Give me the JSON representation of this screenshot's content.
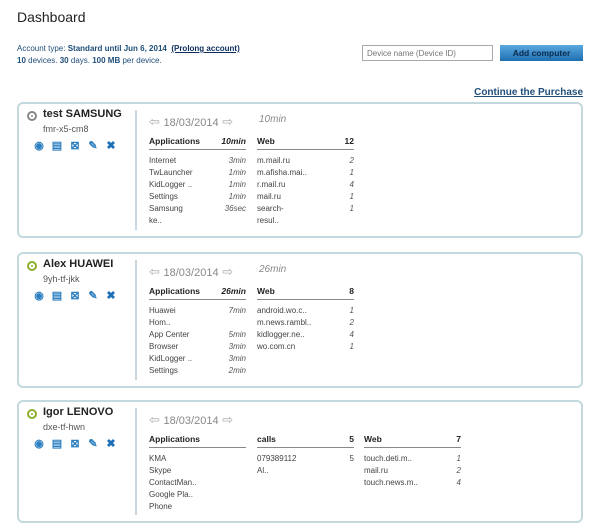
{
  "header": {
    "title": "Dashboard",
    "account_label": "Account type:",
    "account_type": "Standard until Jun 6, 2014",
    "prolong": "(Prolong account)",
    "devices": "10",
    "devices_label": "devices.",
    "days": "30",
    "days_label": "days.",
    "mb": "100 MB",
    "mb_label": "per device.",
    "device_input_placeholder": "Device name (Device ID)",
    "add_button": "Add computer",
    "continue": "Continue the Purchase"
  },
  "colors": {
    "accent": "#1f4e79",
    "button": "#3a8fd0",
    "card_border": "#c3d9de",
    "online": "#8cae2c",
    "offline": "#888888"
  },
  "devices": [
    {
      "name": "test SAMSUNG",
      "id": "fmr-x5-cm8",
      "online": false,
      "date": "18/03/2014",
      "total": "10min",
      "columns": [
        {
          "title": "Applications",
          "count": "10min",
          "rows": [
            [
              "Internet",
              "3min"
            ],
            [
              "TwLauncher",
              "1min"
            ],
            [
              "KidLogger ..",
              "1min"
            ],
            [
              "Settings",
              "1min"
            ],
            [
              "Samsung",
              "36sec"
            ],
            [
              "ke..",
              ""
            ]
          ]
        },
        {
          "title": "Web",
          "count": "12",
          "rows": [
            [
              "m.mail.ru",
              "2"
            ],
            [
              "m.afisha.mai..",
              "1"
            ],
            [
              "r.mail.ru",
              "4"
            ],
            [
              "mail.ru",
              "1"
            ],
            [
              "search-",
              "1"
            ],
            [
              "resul..",
              ""
            ]
          ]
        }
      ]
    },
    {
      "name": "Alex HUAWEI",
      "id": "9yh-tf-jkk",
      "online": true,
      "date": "18/03/2014",
      "total": "26min",
      "columns": [
        {
          "title": "Applications",
          "count": "26min",
          "rows": [
            [
              "Huawei",
              "7min"
            ],
            [
              "Hom..",
              ""
            ],
            [
              "App Center",
              "5min"
            ],
            [
              "Browser",
              "3min"
            ],
            [
              "KidLogger ..",
              "3min"
            ],
            [
              "Settings",
              "2min"
            ]
          ]
        },
        {
          "title": "Web",
          "count": "8",
          "rows": [
            [
              "android.wo.c..",
              "1"
            ],
            [
              "m.news.rambl..",
              "2"
            ],
            [
              "kidlogger.ne..",
              "4"
            ],
            [
              "wo.com.cn",
              "1"
            ]
          ]
        }
      ]
    },
    {
      "name": "Igor LENOVO",
      "id": "dxe-tf-hwn",
      "online": true,
      "date": "18/03/2014",
      "total": "",
      "columns": [
        {
          "title": "Applications",
          "count": "",
          "rows": [
            [
              "KMA",
              ""
            ],
            [
              "Skype",
              ""
            ],
            [
              "ContactMan..",
              ""
            ],
            [
              "Google Pla..",
              ""
            ],
            [
              "Phone",
              ""
            ]
          ]
        },
        {
          "title": "calls",
          "count": "5",
          "rows": [
            [
              "079389112",
              "5"
            ],
            [
              "Al..",
              ""
            ]
          ]
        },
        {
          "title": "Web",
          "count": "7",
          "rows": [
            [
              "touch.deti.m..",
              "1"
            ],
            [
              "mail.ru",
              "2"
            ],
            [
              "touch.news.m..",
              "4"
            ]
          ]
        }
      ]
    }
  ],
  "icons": [
    "eye-icon",
    "calendar-icon",
    "calendar-delete-icon",
    "pencil-icon",
    "delete-icon"
  ]
}
